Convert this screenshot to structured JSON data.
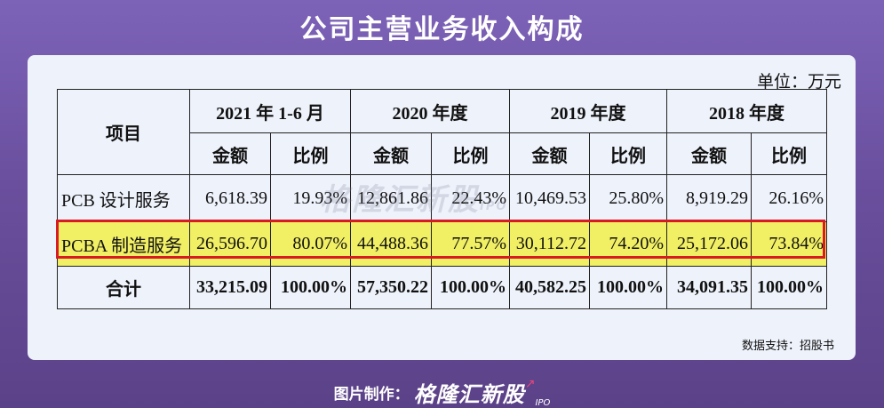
{
  "title": "公司主营业务收入构成",
  "unit": "单位：万元",
  "table": {
    "item_header": "项目",
    "periods": [
      "2021 年 1-6 月",
      "2020 年度",
      "2019 年度",
      "2018 年度"
    ],
    "amount_label": "金额",
    "ratio_label": "比例",
    "rows": [
      {
        "name": "PCB 设计服务",
        "cells": [
          "6,618.39",
          "19.93%",
          "12,861.86",
          "22.43%",
          "10,469.53",
          "25.80%",
          "8,919.29",
          "26.16%"
        ]
      },
      {
        "name": "PCBA 制造服务",
        "cells": [
          "26,596.70",
          "80.07%",
          "44,488.36",
          "77.57%",
          "30,112.72",
          "74.20%",
          "25,172.06",
          "73.84%"
        ]
      },
      {
        "name": "合计",
        "cells": [
          "33,215.09",
          "100.00%",
          "57,350.22",
          "100.00%",
          "40,582.25",
          "100.00%",
          "34,091.35",
          "100.00%"
        ]
      }
    ]
  },
  "watermark": {
    "text": "格隆汇新股",
    "sub": "IPO"
  },
  "source": "数据支持：招股书",
  "footer": {
    "caption": "图片制作：",
    "logo": "格隆汇新股",
    "logo_sub": "IPO"
  },
  "colors": {
    "highlight_fill": "#f1ef64",
    "highlight_border": "#d81b23",
    "background": "#6a4f9e",
    "card": "#eef2fb"
  }
}
